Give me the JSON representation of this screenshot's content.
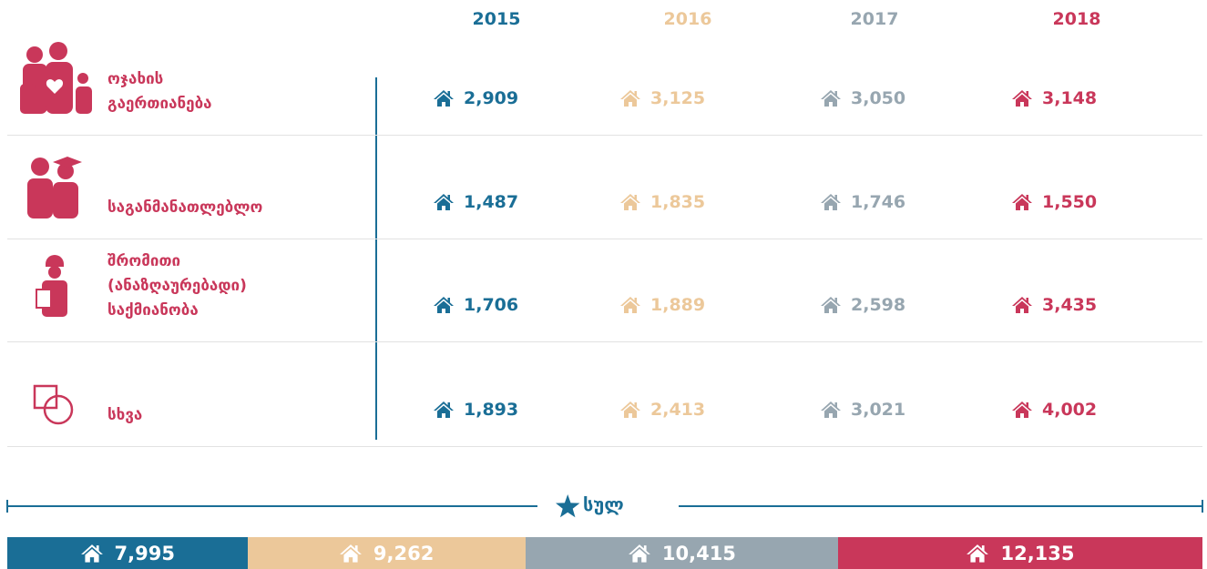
{
  "table": {
    "columns": [
      "2015",
      "2016",
      "2017",
      "2018"
    ],
    "colors": [
      "#1a6e96",
      "#ecc89a",
      "#97a6b0",
      "#c9375a"
    ],
    "rows": [
      {
        "label": "ოჯახის გაერთიანება",
        "values": [
          "2,909",
          "3,125",
          "3,050",
          "3,148"
        ]
      },
      {
        "label": "საგანმანათლებლო",
        "values": [
          "1,487",
          "1,835",
          "1,746",
          "1,550"
        ]
      },
      {
        "label": "შრომითი (ანაზღაურებადი) საქმიანობა",
        "values": [
          "1,706",
          "1,889",
          "2,598",
          "3,435"
        ]
      },
      {
        "label": "სხვა",
        "values": [
          "1,893",
          "2,413",
          "3,021",
          "4,002"
        ]
      }
    ],
    "totals": {
      "label": "სულ",
      "values": [
        7995,
        9262,
        10415,
        12135
      ],
      "value_labels": [
        "7,995",
        "9,262",
        "10,415",
        "12,135"
      ]
    }
  }
}
